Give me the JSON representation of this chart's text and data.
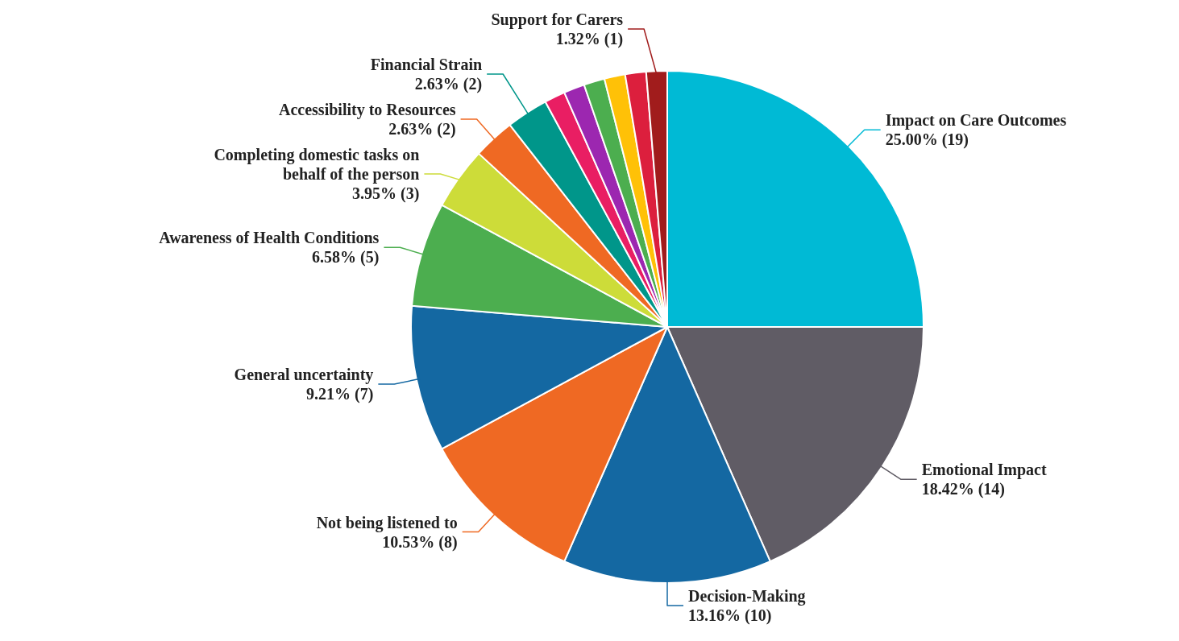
{
  "chart_data": {
    "type": "pie",
    "categories": [
      "Impact on Care Outcomes",
      "Emotional Impact",
      "Decision-Making",
      "Not being listened to",
      "General uncertainty",
      "Awareness of Health Conditions",
      "Completing domestic tasks on behalf of the person",
      "Accessibility to Resources",
      "Financial Strain",
      null,
      null,
      null,
      null,
      null,
      "Support for Carers"
    ],
    "values": [
      19,
      14,
      10,
      8,
      7,
      5,
      3,
      2,
      2,
      1,
      1,
      1,
      1,
      1,
      1
    ],
    "value_labels": [
      "25.00% (19)",
      "18.42% (14)",
      "13.16% (10)",
      "10.53% (8)",
      "9.21% (7)",
      "6.58% (5)",
      "3.95% (3)",
      "2.63% (2)",
      "2.63% (2)",
      null,
      null,
      null,
      null,
      null,
      "1.32% (1)"
    ],
    "colors": [
      "#00bad5",
      "#605c65",
      "#1468a2",
      "#ef6923",
      "#1468a2",
      "#4cae4f",
      "#cddc39",
      "#ef6923",
      "#00968a",
      "#e91e63",
      "#9c27b0",
      "#4cae4f",
      "#ffc107",
      "#dc1f3d",
      "#a11c1c"
    ]
  }
}
